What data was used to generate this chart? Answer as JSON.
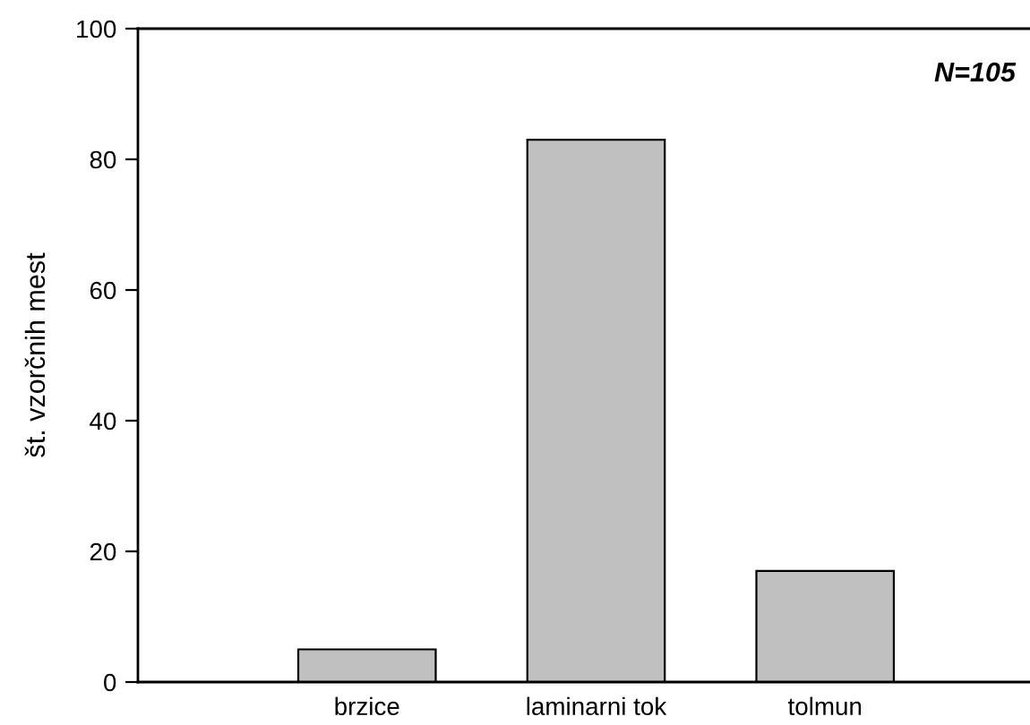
{
  "chart_data": {
    "type": "bar",
    "ylabel": "št. vzorčnih mest",
    "categories": [
      "brzice",
      "laminarni tok",
      "tolmun"
    ],
    "values": [
      5,
      83,
      17
    ],
    "color": "#c0c0c0",
    "ylim": [
      0,
      100
    ],
    "yticks": [
      0,
      20,
      40,
      60,
      80,
      100
    ],
    "grid": false,
    "annotations": [
      "N=105"
    ]
  }
}
